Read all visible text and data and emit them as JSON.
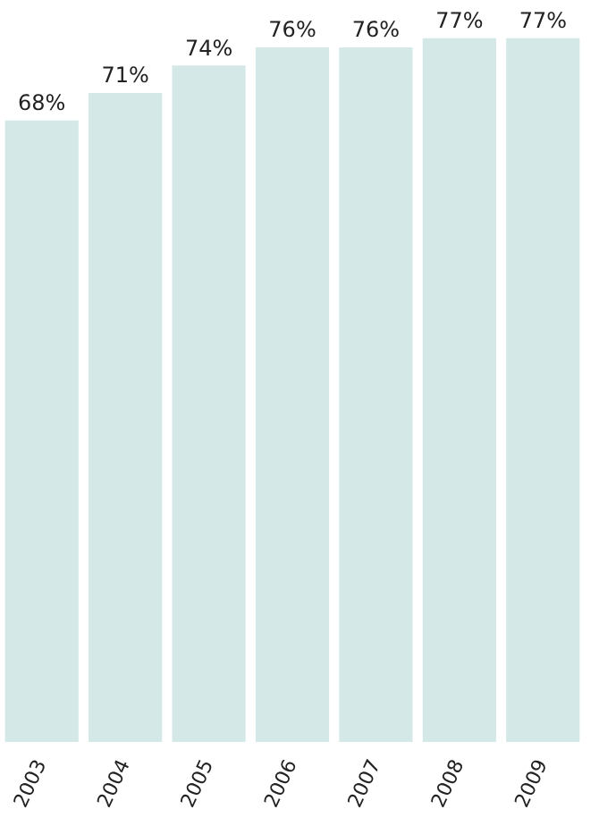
{
  "chart_data": {
    "type": "bar",
    "categories": [
      "2003",
      "2004",
      "2005",
      "2006",
      "2007",
      "2008",
      "2009"
    ],
    "values": [
      68,
      71,
      74,
      76,
      76,
      77,
      77
    ],
    "value_labels": [
      "68%",
      "71%",
      "74%",
      "76%",
      "76%",
      "77%",
      "77%"
    ],
    "color": "#d4e9e7",
    "grid": false,
    "legend": false,
    "tick_labels": "x"
  }
}
